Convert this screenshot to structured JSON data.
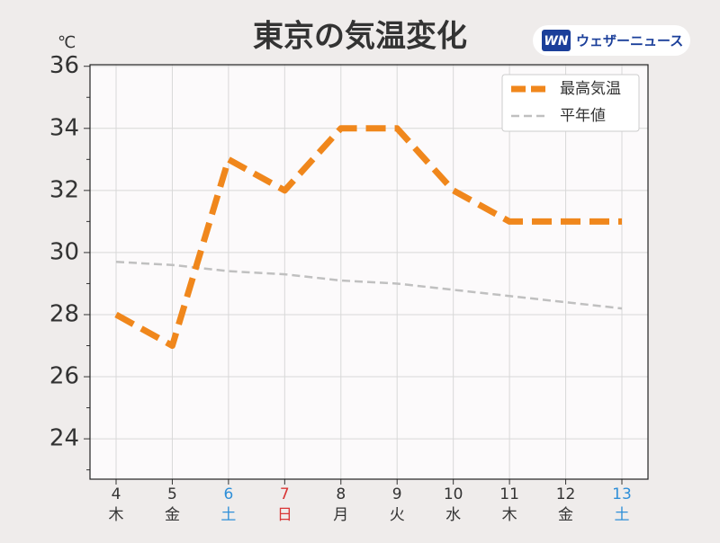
{
  "chart_data": {
    "type": "line",
    "title": "東京の気温変化",
    "y_unit": "℃",
    "logo": {
      "mark": "WN",
      "text": "ウェザーニュース"
    },
    "categories": [
      "4",
      "5",
      "6",
      "7",
      "8",
      "9",
      "10",
      "11",
      "12",
      "13"
    ],
    "weekdays": [
      "木",
      "金",
      "土",
      "日",
      "月",
      "火",
      "水",
      "木",
      "金",
      "土"
    ],
    "category_colors": [
      "#333333",
      "#333333",
      "#2f8fd8",
      "#d93636",
      "#333333",
      "#333333",
      "#333333",
      "#333333",
      "#333333",
      "#2f8fd8"
    ],
    "series": [
      {
        "name": "最高気温",
        "color": "#f0871c",
        "values": [
          28,
          27,
          33,
          32,
          34,
          34,
          32,
          31,
          31,
          31
        ]
      },
      {
        "name": "平年値",
        "color": "#c0c0c0",
        "values": [
          29.7,
          29.6,
          29.4,
          29.3,
          29.1,
          29.0,
          28.8,
          28.6,
          28.4,
          28.2
        ]
      }
    ],
    "ylim": [
      22.7,
      36.05
    ],
    "yticks": [
      24,
      26,
      28,
      30,
      32,
      34,
      36
    ],
    "yminorticks": [
      23,
      25,
      27,
      29,
      31,
      33,
      35
    ],
    "grid": true,
    "legend": "upper right"
  }
}
